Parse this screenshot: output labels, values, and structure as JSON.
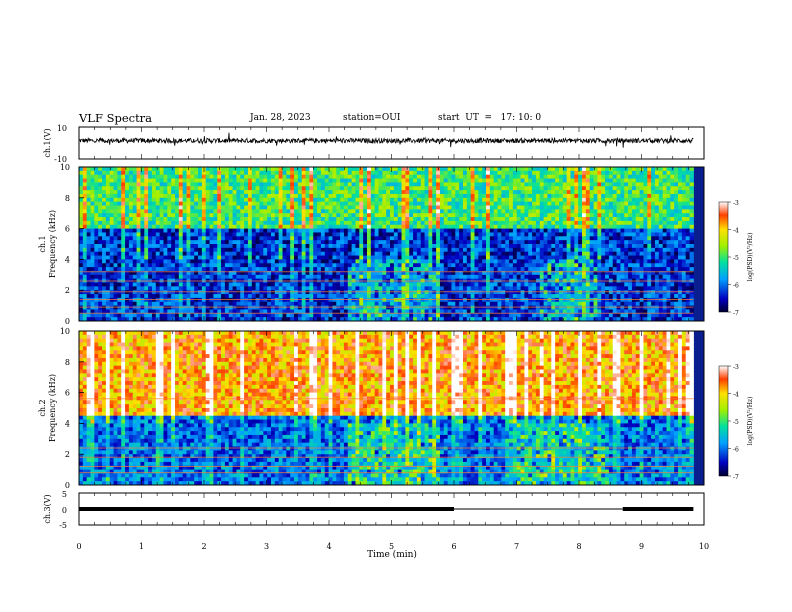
{
  "header": {
    "title": "VLF Spectra",
    "date": "Jan. 28, 2023",
    "station": "station=OUI",
    "start": "start  UT  =   17: 10: 0"
  },
  "chart_data": [
    {
      "type": "line",
      "panel": "ch1-waveform",
      "ylabel": "ch.1(V)",
      "ylim": [
        -10,
        10
      ],
      "yticks": [
        "10",
        "-10"
      ],
      "xlim": [
        0,
        10
      ],
      "data_end_min": 9.83,
      "baseline_v": 1.5,
      "description_values": {
        "mean_v": 1.5,
        "typical_spread_v": 1.5
      }
    },
    {
      "type": "heatmap",
      "panel": "ch1-spectrogram",
      "ylabel": "Frequency (kHz)",
      "channel_label": "ch.1",
      "ylim": [
        0,
        10
      ],
      "yticks": [
        "0",
        "2",
        "4",
        "6",
        "8",
        "10"
      ],
      "xlim": [
        0,
        10
      ],
      "data_end_min": 9.83,
      "colorbar": {
        "label": "log(PSD)(V²/Hz)",
        "range": [
          -7,
          -3
        ],
        "ticks": [
          "-3",
          "-4",
          "-5",
          "-6",
          "-7"
        ]
      },
      "emission_bands_khz": [
        {
          "f_low": 0.2,
          "f_high": 6.0,
          "level": -6.3
        },
        {
          "f_low": 6.0,
          "f_high": 10.0,
          "level": -5.0
        }
      ],
      "enhanced_lines_khz": [
        3.2,
        2.6,
        1.9,
        1.4,
        0.9,
        0.5
      ],
      "enhanced_intervals_min": [
        [
          4.3,
          5.8
        ],
        [
          7.4,
          8.3
        ]
      ]
    },
    {
      "type": "heatmap",
      "panel": "ch2-spectrogram",
      "ylabel": "Frequency (kHz)",
      "channel_label": "ch.2",
      "ylim": [
        0,
        10
      ],
      "yticks": [
        "0",
        "2",
        "4",
        "6",
        "8",
        "10"
      ],
      "xlim": [
        0,
        10
      ],
      "data_end_min": 9.83,
      "colorbar": {
        "label": "log(PSD)(V²/Hz)",
        "range": [
          -7,
          -3
        ],
        "ticks": [
          "-3",
          "-4",
          "-5",
          "-6",
          "-7"
        ]
      },
      "emission_bands_khz": [
        {
          "f_low": 0.0,
          "f_high": 4.5,
          "level": -6.0
        },
        {
          "f_low": 4.5,
          "f_high": 10.0,
          "level": -3.8
        }
      ],
      "enhanced_lines_khz": [
        2.4,
        1.8,
        1.2,
        0.8,
        5.6
      ],
      "enhanced_intervals_min": [
        [
          4.3,
          5.8
        ],
        [
          7.0,
          8.5
        ]
      ]
    },
    {
      "type": "line",
      "panel": "ch3-signal",
      "ylabel": "ch.3(V)",
      "xlabel": "Time (min)",
      "ylim": [
        -5,
        5
      ],
      "yticks": [
        "5",
        "0",
        "-5"
      ],
      "xlim": [
        0,
        10
      ],
      "xticks": [
        "0",
        "1",
        "2",
        "3",
        "4",
        "5",
        "6",
        "7",
        "8",
        "9",
        "10"
      ],
      "segments": [
        {
          "t_start": 0.0,
          "t_end": 6.0,
          "value": 0.0
        },
        {
          "t_start": 8.7,
          "t_end": 9.83,
          "value": 0.0
        }
      ],
      "gap_segment": {
        "t_start": 6.0,
        "t_end": 8.7,
        "value": 0.0
      }
    }
  ]
}
